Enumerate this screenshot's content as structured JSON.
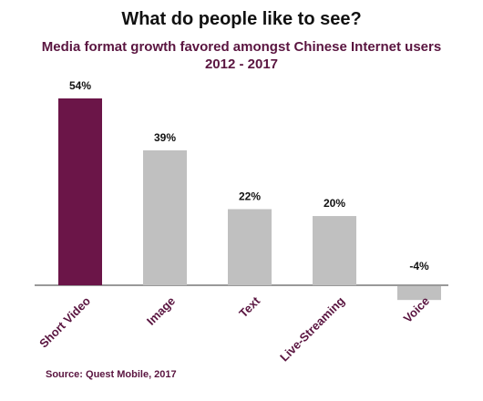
{
  "chart_data": {
    "type": "bar",
    "title": "What do people like to see?",
    "subtitle": "Media format growth favored amongst Chinese Internet users 2012 - 2017",
    "categories": [
      "Short Video",
      "Image",
      "Text",
      "Live-Streaming",
      "Voice"
    ],
    "values": [
      54,
      39,
      22,
      20,
      -4
    ],
    "value_labels": [
      "54%",
      "39%",
      "22%",
      "20%",
      "-4%"
    ],
    "highlight_index": 0,
    "colors": {
      "highlight": "#6b1548",
      "default": "#c0c0c0",
      "axis": "#333333"
    },
    "ylim": [
      -4,
      54
    ],
    "grid": false,
    "legend": "none",
    "source": "Source: Quest Mobile, 2017"
  }
}
